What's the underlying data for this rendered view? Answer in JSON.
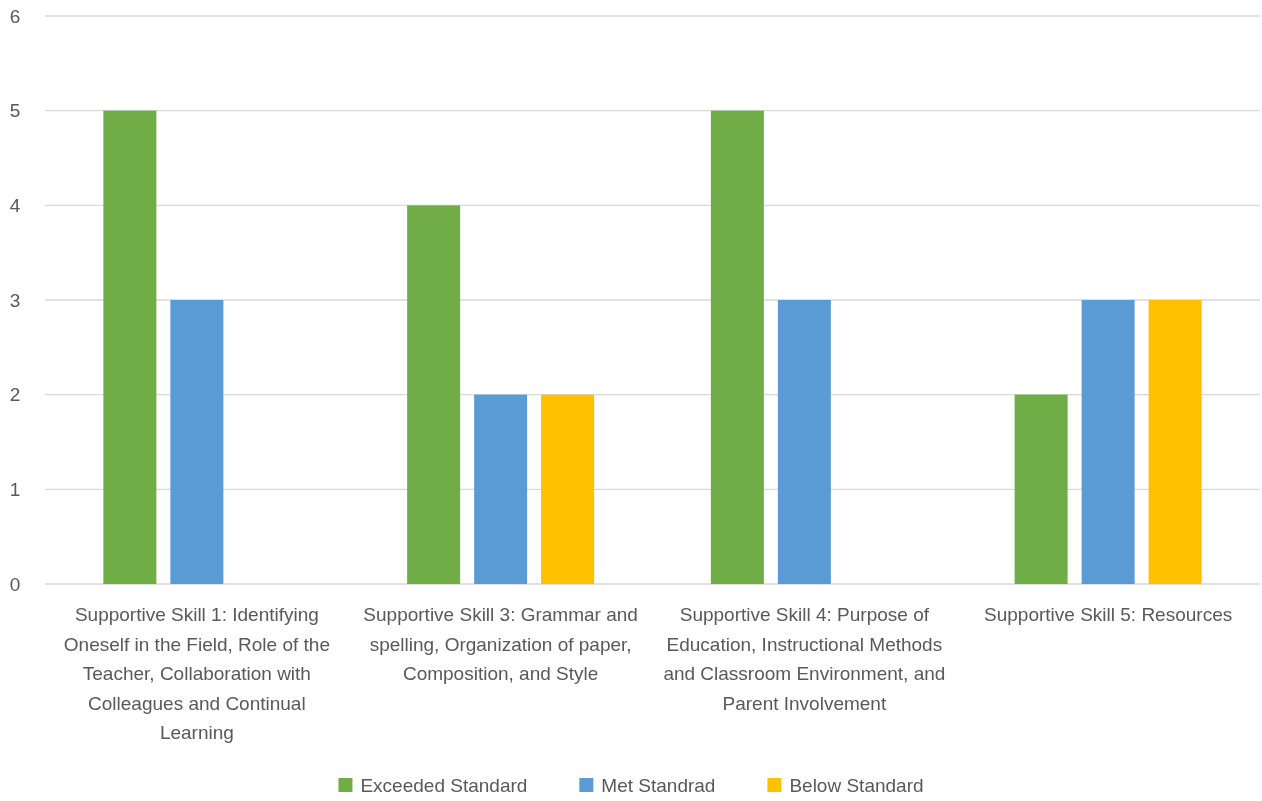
{
  "chart_data": {
    "type": "bar",
    "categories": [
      "Supportive Skill 1: Identifying Oneself in the Field, Role of the Teacher, Collaboration with Colleagues and Continual Learning",
      "Supportive Skill 3: Grammar and spelling, Organization of paper, Composition, and Style",
      "Supportive Skill 4: Purpose of Education, Instructional Methods and Classroom Environment, and Parent Involvement",
      "Supportive Skill 5: Resources"
    ],
    "series": [
      {
        "name": "Exceeded Standard",
        "color": "#70ad47",
        "values": [
          5,
          4,
          5,
          2
        ]
      },
      {
        "name": "Met Standrad",
        "color": "#5b9bd5",
        "values": [
          3,
          2,
          3,
          3
        ]
      },
      {
        "name": "Below Standard",
        "color": "#ffc000",
        "values": [
          0,
          2,
          0,
          3
        ]
      }
    ],
    "ylim": [
      0,
      6
    ],
    "yticks": [
      0,
      1,
      2,
      3,
      4,
      5,
      6
    ],
    "grid": "y",
    "legend": "bottom"
  }
}
